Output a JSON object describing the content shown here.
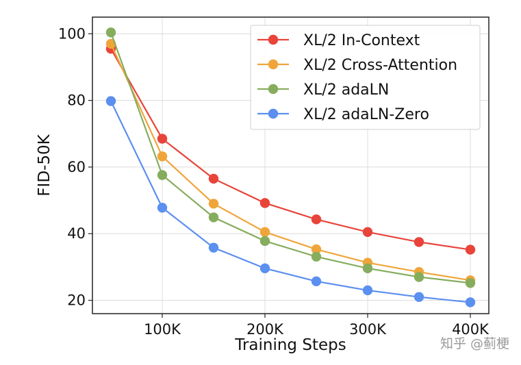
{
  "watermark": "知乎 @蓟梗",
  "chart_data": {
    "type": "line",
    "xlabel": "Training Steps",
    "ylabel": "FID-50K",
    "x": [
      50000,
      100000,
      150000,
      200000,
      250000,
      300000,
      350000,
      400000
    ],
    "xticks": [
      100000,
      200000,
      300000,
      400000
    ],
    "xtick_labels": [
      "100K",
      "200K",
      "300K",
      "400K"
    ],
    "xlim": [
      32000,
      418000
    ],
    "yticks": [
      20,
      40,
      60,
      80,
      100
    ],
    "ylim": [
      16,
      105
    ],
    "grid": true,
    "legend_position": "top-right",
    "series": [
      {
        "name": "XL/2 In-Context",
        "color": "#e8443a",
        "values": [
          95.5,
          68.5,
          56.5,
          49.2,
          44.3,
          40.5,
          37.5,
          35.2
        ]
      },
      {
        "name": "XL/2 Cross-Attention",
        "color": "#f0a53a",
        "values": [
          97.0,
          63.2,
          49.0,
          40.5,
          35.3,
          31.3,
          28.5,
          26.0
        ]
      },
      {
        "name": "XL/2 adaLN",
        "color": "#86ad5e",
        "values": [
          100.4,
          57.6,
          44.9,
          37.8,
          33.1,
          29.6,
          27.0,
          25.2
        ]
      },
      {
        "name": "XL/2 adaLN-Zero",
        "color": "#5b8ff0",
        "values": [
          79.8,
          47.8,
          35.8,
          29.6,
          25.7,
          23.0,
          21.0,
          19.4
        ]
      }
    ]
  }
}
